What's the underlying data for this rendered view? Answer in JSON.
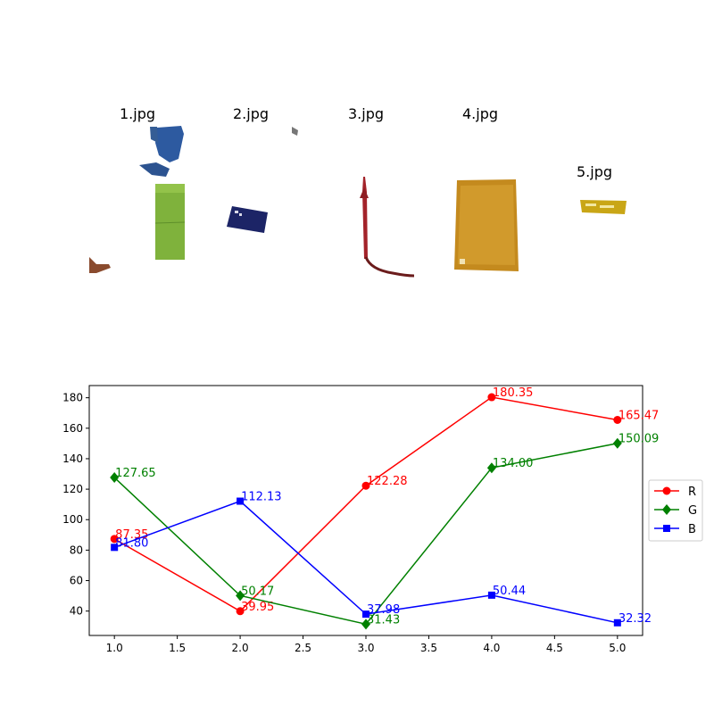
{
  "thumbnails": [
    {
      "title": "1.jpg"
    },
    {
      "title": "2.jpg"
    },
    {
      "title": "3.jpg"
    },
    {
      "title": "4.jpg"
    },
    {
      "title": "5.jpg"
    }
  ],
  "chart_data": {
    "type": "line",
    "x": [
      1.0,
      2.0,
      3.0,
      4.0,
      5.0
    ],
    "xlim": [
      0.8,
      5.2
    ],
    "ylim": [
      24,
      188
    ],
    "xticks": [
      "1.0",
      "1.5",
      "2.0",
      "2.5",
      "3.0",
      "3.5",
      "4.0",
      "4.5",
      "5.0"
    ],
    "xtick_values": [
      1.0,
      1.5,
      2.0,
      2.5,
      3.0,
      3.5,
      4.0,
      4.5,
      5.0
    ],
    "yticks": [
      "40",
      "60",
      "80",
      "100",
      "120",
      "140",
      "160",
      "180"
    ],
    "ytick_values": [
      40,
      60,
      80,
      100,
      120,
      140,
      160,
      180
    ],
    "grid": false,
    "legend_position": "right",
    "series": [
      {
        "name": "R",
        "color": "#ff0000",
        "marker": "circle",
        "values": [
          87.35,
          39.95,
          122.28,
          180.35,
          165.47
        ],
        "labels": [
          "87.35",
          "39.95",
          "122.28",
          "180.35",
          "165.47"
        ]
      },
      {
        "name": "G",
        "color": "#008000",
        "marker": "diamond",
        "values": [
          127.65,
          50.17,
          31.43,
          134.0,
          150.09
        ],
        "labels": [
          "127.65",
          "50.17",
          "31.43",
          "134.00",
          "150.09"
        ]
      },
      {
        "name": "B",
        "color": "#0000ff",
        "marker": "square",
        "values": [
          81.8,
          112.13,
          37.98,
          50.44,
          32.32
        ],
        "labels": [
          "81.80",
          "112.13",
          "37.98",
          "50.44",
          "32.32"
        ]
      }
    ]
  }
}
